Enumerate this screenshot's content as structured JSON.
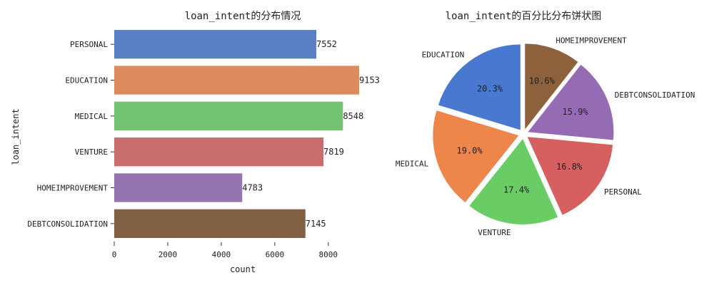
{
  "chart_data": [
    {
      "type": "bar",
      "orientation": "horizontal",
      "title": "loan_intent的分布情况",
      "xlabel": "count",
      "ylabel": "loan_intent",
      "categories": [
        "PERSONAL",
        "EDUCATION",
        "MEDICAL",
        "VENTURE",
        "HOMEIMPROVEMENT",
        "DEBTCONSOLIDATION"
      ],
      "values": [
        7552,
        9153,
        8548,
        7819,
        4783,
        7145
      ],
      "value_labels": [
        "7552",
        "9153",
        "8548",
        "7819",
        "4783",
        "7145"
      ],
      "colors": [
        "#5b7fc3",
        "#db8b5d",
        "#72c26f",
        "#c76d6c",
        "#9475af",
        "#805f43"
      ],
      "xlim": [
        0,
        9153
      ],
      "xticks": [
        0,
        2000,
        4000,
        6000,
        8000
      ],
      "xtick_labels": [
        "0",
        "2000",
        "4000",
        "6000",
        "8000"
      ],
      "grid": false
    },
    {
      "type": "pie",
      "title": "loan_intent的百分比分布饼状图",
      "labels": [
        "EDUCATION",
        "MEDICAL",
        "VENTURE",
        "PERSONAL",
        "DEBTCONSOLIDATION",
        "HOMEIMPROVEMENT"
      ],
      "values": [
        20.3,
        19.0,
        17.4,
        16.8,
        15.9,
        10.6
      ],
      "pct_labels": [
        "20.3%",
        "19.0%",
        "17.4%",
        "16.8%",
        "15.9%",
        "10.6%"
      ],
      "colors": [
        "#4878d0",
        "#ee854a",
        "#6acc64",
        "#d65f5f",
        "#956cb4",
        "#8c613c"
      ],
      "start_angle": 90,
      "direction": "counterclockwise",
      "exploded": true
    }
  ]
}
